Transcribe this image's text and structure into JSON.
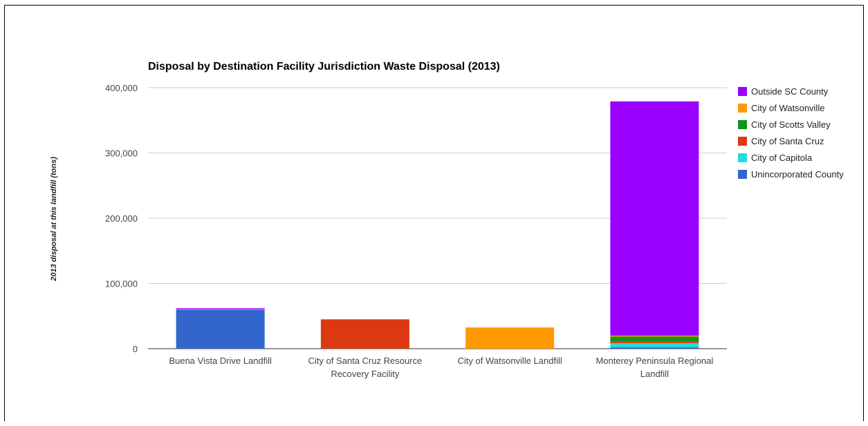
{
  "chart_data": {
    "type": "bar",
    "stacked": true,
    "title": "Disposal by Destination Facility Jurisdiction Waste Disposal (2013)",
    "xlabel": "",
    "ylabel": "2013 disposal at this landfill (tons)",
    "ylim": [
      0,
      400000
    ],
    "yticks": [
      0,
      100000,
      200000,
      300000,
      400000
    ],
    "ytick_labels": [
      "0",
      "100,000",
      "200,000",
      "300,000",
      "400,000"
    ],
    "grid": true,
    "legend_position": "right",
    "categories": [
      [
        "Buena Vista Drive Landfill"
      ],
      [
        "City of Santa Cruz Resource",
        "Recovery Facility"
      ],
      [
        "City of Watsonville Landfill"
      ],
      [
        "Monterey Peninsula Regional",
        "Landfill"
      ]
    ],
    "series": [
      {
        "name": "Unincorporated County",
        "color": "#3366cc",
        "values": [
          59500,
          0,
          0,
          2000
        ]
      },
      {
        "name": "City of Capitola",
        "color": "#22dddd",
        "values": [
          500,
          0,
          0,
          6500
        ]
      },
      {
        "name": "City of Santa Cruz",
        "color": "#dc3912",
        "values": [
          500,
          45000,
          0,
          3000
        ]
      },
      {
        "name": "City of Scotts Valley",
        "color": "#109618",
        "values": [
          0,
          0,
          0,
          7000
        ]
      },
      {
        "name": "City of Watsonville",
        "color": "#ff9900",
        "values": [
          0,
          0,
          32500,
          1500
        ]
      },
      {
        "name": "Outside SC County",
        "color": "#9900ff",
        "values": [
          1500,
          0,
          0,
          359000
        ]
      }
    ]
  }
}
